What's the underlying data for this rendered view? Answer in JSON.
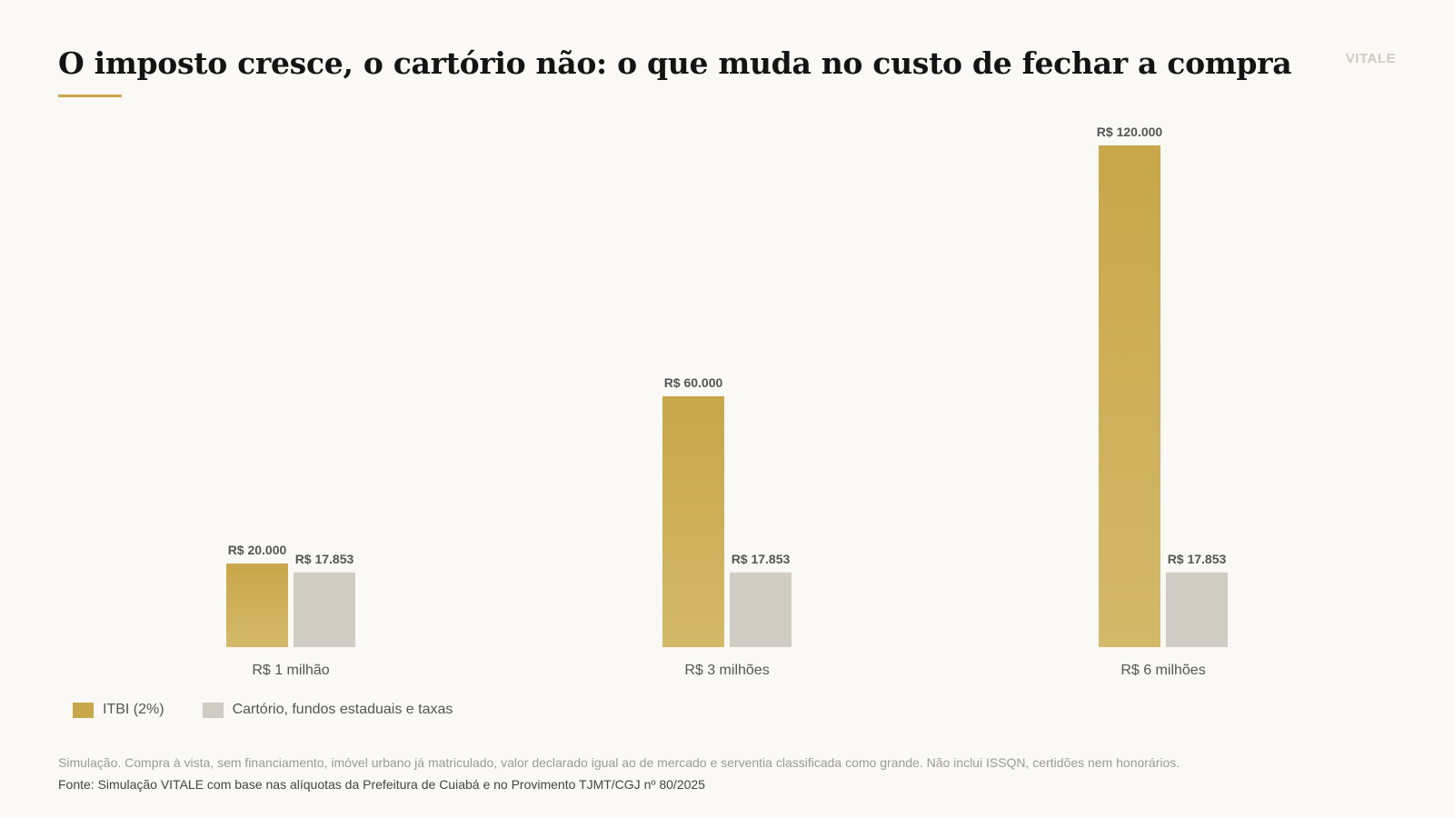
{
  "header": {
    "title": "O imposto cresce, o cartório não: o que muda no custo de fechar a compra",
    "brand": "VITALE"
  },
  "colors": {
    "itbi_top": "#c8a74a",
    "itbi_bottom": "#d4b96a",
    "cartorio": "#d1ccc3",
    "background": "#faf9f5",
    "accent": "#c9a84a"
  },
  "chart_data": {
    "type": "bar",
    "categories": [
      "R$ 1 milhão",
      "R$ 3 milhões",
      "R$ 6 milhões"
    ],
    "series": [
      {
        "name": "ITBI (2%)",
        "values": [
          20000,
          60000,
          120000
        ],
        "labels": [
          "R$ 20.000",
          "R$ 60.000",
          "R$ 120.000"
        ]
      },
      {
        "name": "Cartório, fundos estaduais e taxas",
        "values": [
          17853,
          17853,
          17853
        ],
        "labels": [
          "R$ 17.853",
          "R$ 17.853",
          "R$ 17.853"
        ]
      }
    ],
    "ylim": [
      0,
      120000
    ],
    "grid": false,
    "legend_position": "bottom-left"
  },
  "footer": {
    "note": "Simulação. Compra à vista, sem financiamento, imóvel urbano já matriculado, valor declarado igual ao de mercado e serventia classificada como grande. Não inclui ISSQN, certidões nem honorários.",
    "source": "Fonte: Simulação VITALE com base nas alíquotas da Prefeitura de Cuiabá e no Provimento TJMT/CGJ nº 80/2025"
  }
}
